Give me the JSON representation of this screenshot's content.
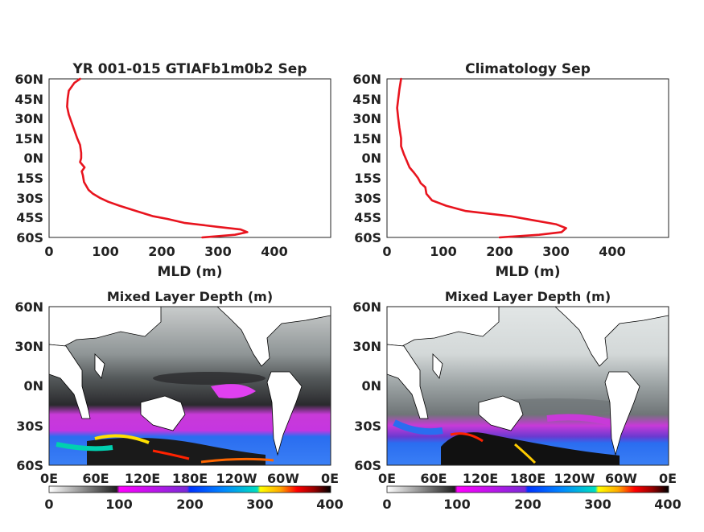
{
  "chart_data": [
    {
      "type": "line",
      "title": "YR 001-015 GTIAFb1m0b2 Sep",
      "xlabel": "MLD (m)",
      "ylabel": "",
      "xlim": [
        0,
        500
      ],
      "ylim": [
        -60,
        60
      ],
      "xticks": [
        "0",
        "100",
        "200",
        "300",
        "400"
      ],
      "yticks": [
        "60N",
        "45N",
        "30N",
        "15N",
        "0N",
        "15S",
        "30S",
        "45S",
        "60S"
      ],
      "line_color": "#e8141e",
      "x": [
        272,
        330,
        352,
        340,
        300,
        240,
        210,
        185,
        155,
        125,
        105,
        90,
        78,
        70,
        66,
        62,
        60,
        58,
        63,
        55,
        57,
        57,
        55,
        50,
        45,
        40,
        35,
        32,
        33,
        35,
        45,
        55
      ],
      "y": [
        -60,
        -58,
        -56,
        -54,
        -52,
        -49,
        -46,
        -44,
        -40,
        -36,
        -33,
        -30,
        -27,
        -24,
        -21,
        -18,
        -13,
        -10,
        -7,
        -3,
        0,
        4,
        10,
        15,
        21,
        27,
        33,
        39,
        45,
        51,
        57,
        60
      ]
    },
    {
      "type": "line",
      "title": "Climatology Sep",
      "xlabel": "MLD (m)",
      "ylabel": "",
      "xlim": [
        0,
        500
      ],
      "ylim": [
        -60,
        60
      ],
      "xticks": [
        "0",
        "100",
        "200",
        "300",
        "400"
      ],
      "yticks": [
        "60N",
        "45N",
        "30N",
        "15N",
        "0N",
        "15S",
        "30S",
        "45S",
        "60S"
      ],
      "line_color": "#e8141e",
      "x": [
        200,
        270,
        310,
        318,
        300,
        260,
        220,
        180,
        140,
        105,
        80,
        70,
        68,
        60,
        55,
        48,
        40,
        35,
        30,
        25,
        25,
        22,
        20,
        18,
        20,
        22,
        25
      ],
      "y": [
        -60,
        -58,
        -56,
        -53,
        -50,
        -47,
        -44,
        -42,
        -40,
        -36,
        -32,
        -27,
        -22,
        -19,
        -15,
        -11,
        -7,
        -2,
        3,
        9,
        15,
        23,
        30,
        38,
        45,
        52,
        60
      ]
    },
    {
      "type": "heatmap",
      "title": "Mixed Layer Depth (m)",
      "xticks": [
        "0E",
        "60E",
        "120E",
        "180E",
        "120W",
        "60W",
        "0E"
      ],
      "yticks": [
        "60N",
        "30N",
        "0N",
        "30S",
        "60S"
      ],
      "colorbar_ticks": [
        "0",
        "100",
        "200",
        "300",
        "400"
      ],
      "colorbar_range": [
        0,
        400
      ]
    },
    {
      "type": "heatmap",
      "title": "Mixed Layer Depth (m)",
      "xticks": [
        "0E",
        "60E",
        "120E",
        "180E",
        "120W",
        "60W",
        "0E"
      ],
      "yticks": [
        "60N",
        "30N",
        "0N",
        "30S",
        "60S"
      ],
      "colorbar_ticks": [
        "0",
        "100",
        "200",
        "300",
        "400"
      ],
      "colorbar_range": [
        0,
        400
      ]
    }
  ]
}
